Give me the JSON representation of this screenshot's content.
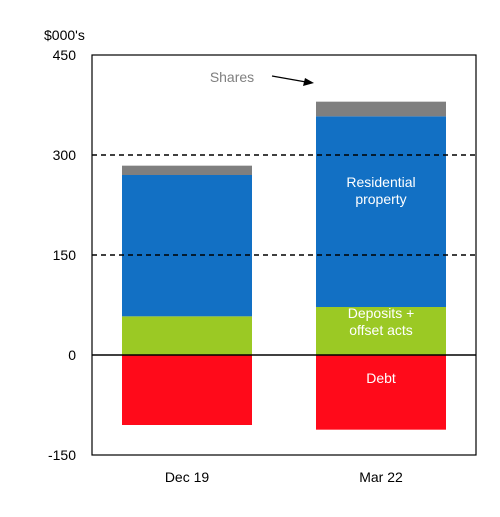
{
  "chart_data": {
    "type": "bar",
    "stacked": true,
    "unit_label": "$000's",
    "title": "",
    "xlabel": "",
    "ylabel": "",
    "categories": [
      "Dec 19",
      "Mar 22"
    ],
    "ylim": [
      -150,
      450
    ],
    "yticks": [
      -150,
      0,
      150,
      300,
      450
    ],
    "yticks_labels": [
      "-150",
      "0",
      "150",
      "300",
      "450"
    ],
    "gridlines_dashed_at": [
      150,
      300
    ],
    "series": [
      {
        "key": "debt",
        "values": [
          -105,
          -112
        ],
        "color": "#ff0a1a"
      },
      {
        "key": "deposits",
        "values": [
          58,
          72
        ],
        "color": "#9bc924"
      },
      {
        "key": "residential",
        "values": [
          212,
          286
        ],
        "color": "#1270c4"
      },
      {
        "key": "shares",
        "values": [
          14,
          22
        ],
        "color": "#7f7f7f"
      }
    ],
    "annotations": [
      {
        "key": "shares",
        "text": "Shares",
        "color": "#7f7f7f",
        "arrow": true
      },
      {
        "key": "residential",
        "lines": [
          "Residential",
          "property"
        ],
        "color": "#ffffff"
      },
      {
        "key": "deposits",
        "lines": [
          "Deposits +",
          "offset acts"
        ],
        "color": "#ffffff"
      },
      {
        "key": "debt",
        "lines": [
          "Debt"
        ],
        "color": "#ffffff"
      }
    ]
  }
}
